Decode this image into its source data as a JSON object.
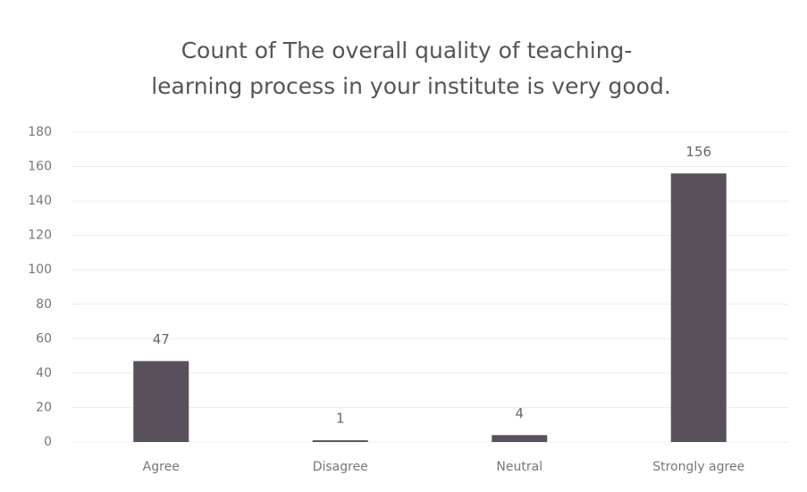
{
  "chart_data": {
    "type": "bar",
    "title": [
      "Count of The overall quality of teaching-",
      "learning process in your institute is very good."
    ],
    "categories": [
      "Agree",
      "Disagree",
      "Neutral",
      "Strongly agree"
    ],
    "values": [
      47,
      1,
      4,
      156
    ],
    "color": "#58505a",
    "ylim": [
      0,
      180
    ],
    "yticks": [
      0,
      20,
      40,
      60,
      80,
      100,
      120,
      140,
      160,
      180
    ],
    "grid": true
  }
}
